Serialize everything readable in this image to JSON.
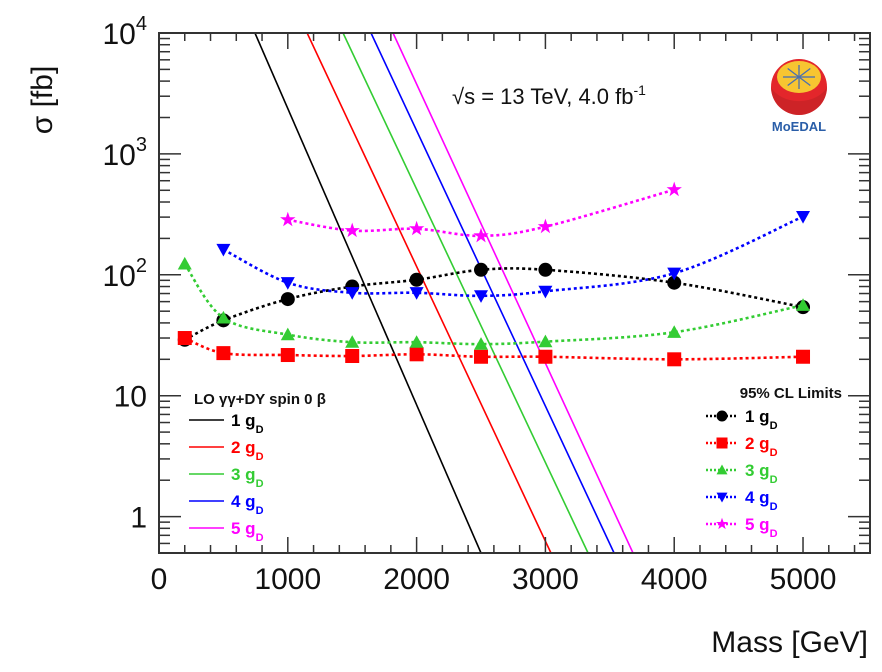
{
  "chart_data": {
    "type": "line",
    "title": "",
    "xlabel": "Mass [GeV]",
    "ylabel": "σ [fb]",
    "xlim": [
      0,
      5520
    ],
    "ylim": [
      0.5,
      10000
    ],
    "yscale": "log",
    "grid": false,
    "x_ticks": [
      0,
      1000,
      2000,
      3000,
      4000,
      5000
    ],
    "x_tick_labels": [
      "0",
      "1000",
      "2000",
      "3000",
      "4000",
      "5000"
    ],
    "y_ticks": [
      1,
      10,
      100,
      1000,
      10000
    ],
    "y_tick_labels": [
      {
        "base": "1",
        "exp": ""
      },
      {
        "base": "10",
        "exp": ""
      },
      {
        "base": "10",
        "exp": "2"
      },
      {
        "base": "10",
        "exp": "3"
      },
      {
        "base": "10",
        "exp": "4"
      }
    ],
    "annotation": {
      "sqrt": "√",
      "text": "s = 13 TeV, 4.0 fb",
      "sup": "-1"
    },
    "logo": {
      "text": "MoEDAL",
      "colors": {
        "ball": "#e3262b",
        "ball_shade": "#b81f24",
        "core": "#f7c531",
        "arrows": "#4a6fb0",
        "text": "#2a5ea8"
      }
    },
    "theory": {
      "legend_title": "LO γγ+DY spin 0 β",
      "legend_position": "bottom-left",
      "style": "solid",
      "series": [
        {
          "name": "1 gD",
          "num": "1 g",
          "sub": "D",
          "color": "#000000",
          "points": [
            [
              745,
              10000
            ],
            [
              2500,
              0.5
            ]
          ]
        },
        {
          "name": "2 gD",
          "num": "2 g",
          "sub": "D",
          "color": "#ff0000",
          "points": [
            [
              1150,
              10000
            ],
            [
              3043,
              0.5
            ]
          ]
        },
        {
          "name": "3 gD",
          "num": "3 g",
          "sub": "D",
          "color": "#33cc33",
          "points": [
            [
              1429,
              10000
            ],
            [
              3331,
              0.5
            ]
          ]
        },
        {
          "name": "4 gD",
          "num": "4 g",
          "sub": "D",
          "color": "#0000ff",
          "points": [
            [
              1646,
              10000
            ],
            [
              3533,
              0.5
            ]
          ]
        },
        {
          "name": "5 gD",
          "num": "5 g",
          "sub": "D",
          "color": "#ff00ff",
          "points": [
            [
              1817,
              10000
            ],
            [
              3680,
              0.5
            ]
          ]
        }
      ]
    },
    "limits": {
      "legend_title": "95% CL Limits",
      "legend_position": "bottom-right",
      "style": "dotted",
      "series": [
        {
          "name": "1 gD",
          "num": "1 g",
          "sub": "D",
          "color": "#000000",
          "marker": "circle",
          "x": [
            200,
            500,
            1000,
            1500,
            2000,
            2500,
            3000,
            4000,
            5000
          ],
          "y": [
            29,
            42,
            63,
            80,
            91,
            110,
            110,
            86,
            54
          ]
        },
        {
          "name": "2 gD",
          "num": "2 g",
          "sub": "D",
          "color": "#ff0000",
          "marker": "square",
          "x": [
            200,
            500,
            1000,
            1500,
            2000,
            2500,
            3000,
            4000,
            5000
          ],
          "y": [
            30,
            22.5,
            21.7,
            21.3,
            22,
            21,
            21,
            20,
            21
          ]
        },
        {
          "name": "3 gD",
          "num": "3 g",
          "sub": "D",
          "color": "#33cc33",
          "marker": "triangle-up",
          "x": [
            200,
            500,
            1000,
            1500,
            2000,
            2500,
            3000,
            4000,
            5000
          ],
          "y": [
            123,
            44,
            32,
            27.7,
            27.7,
            26.7,
            28,
            33.5,
            56
          ]
        },
        {
          "name": "4 gD",
          "num": "4 g",
          "sub": "D",
          "color": "#0000ff",
          "marker": "triangle-down",
          "x": [
            500,
            1000,
            1500,
            2000,
            2500,
            3000,
            4000,
            5000
          ],
          "y": [
            162,
            86,
            71,
            71,
            67,
            73,
            103,
            303
          ]
        },
        {
          "name": "5 gD",
          "num": "5 g",
          "sub": "D",
          "color": "#ff00ff",
          "marker": "star",
          "x": [
            1000,
            1500,
            2000,
            2500,
            3000,
            4000
          ],
          "y": [
            285,
            232,
            240,
            210,
            250,
            506
          ]
        }
      ]
    }
  }
}
